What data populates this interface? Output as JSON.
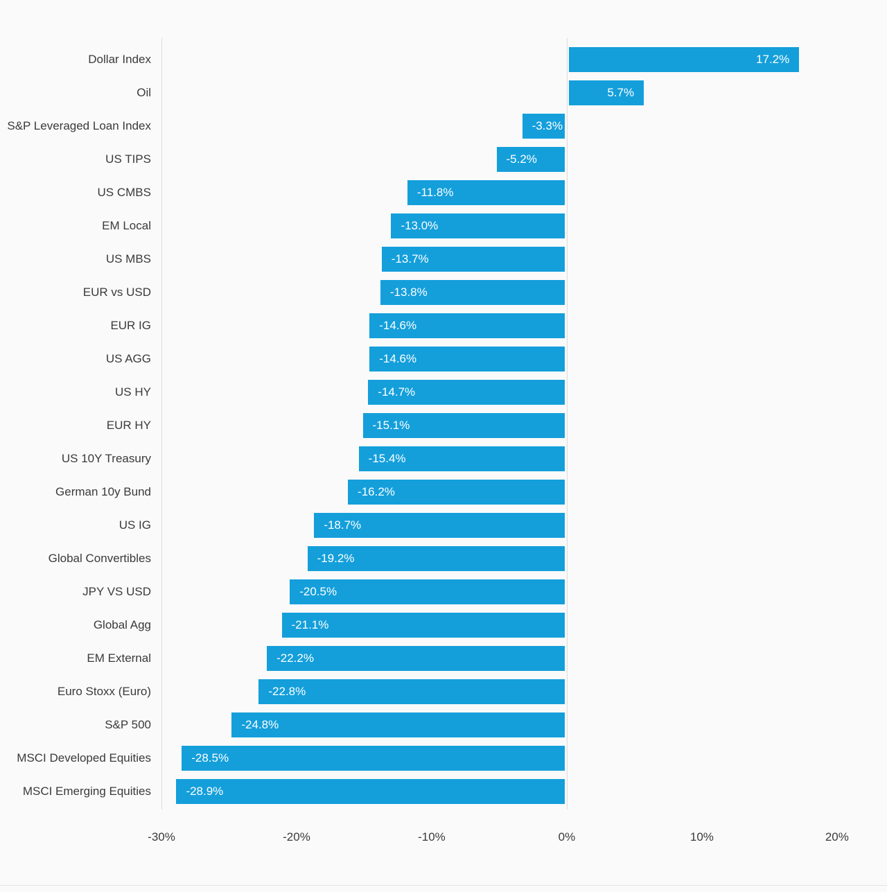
{
  "chart_data": {
    "type": "bar",
    "orientation": "horizontal",
    "title": "",
    "categories": [
      "Dollar Index",
      "Oil",
      "S&P Leveraged Loan Index",
      "US TIPS",
      "US CMBS",
      "EM Local",
      "US MBS",
      "EUR vs USD",
      "EUR IG",
      "US AGG",
      "US HY",
      "EUR HY",
      "US 10Y Treasury",
      "German 10y Bund",
      "US IG",
      "Global Convertibles",
      "JPY VS USD",
      "Global Agg",
      "EM External",
      "Euro Stoxx (Euro)",
      "S&P 500",
      "MSCI Developed Equities",
      "MSCI Emerging Equities"
    ],
    "values": [
      17.2,
      5.7,
      -3.3,
      -5.2,
      -11.8,
      -13.0,
      -13.7,
      -13.8,
      -14.6,
      -14.6,
      -14.7,
      -15.1,
      -15.4,
      -16.2,
      -18.7,
      -19.2,
      -20.5,
      -21.1,
      -22.2,
      -22.8,
      -24.8,
      -28.5,
      -28.9
    ],
    "value_labels": [
      "17.2%",
      "5.7%",
      "-3.3%",
      "-5.2%",
      "-11.8%",
      "-13.0%",
      "-13.7%",
      "-13.8%",
      "-14.6%",
      "-14.6%",
      "-14.7%",
      "-15.1%",
      "-15.4%",
      "-16.2%",
      "-18.7%",
      "-19.2%",
      "-20.5%",
      "-21.1%",
      "-22.2%",
      "-22.8%",
      "-24.8%",
      "-28.5%",
      "-28.9%"
    ],
    "xlim": [
      -30,
      23.7
    ],
    "x_ticks": [
      {
        "value": -30,
        "label": "-30%"
      },
      {
        "value": -20,
        "label": "-20%"
      },
      {
        "value": -10,
        "label": "-10%"
      },
      {
        "value": 0,
        "label": "0%"
      },
      {
        "value": 10,
        "label": "10%"
      },
      {
        "value": 20,
        "label": "20%"
      }
    ],
    "gridlines": [
      -30,
      0
    ],
    "bar_color": "#149FDB",
    "gridline_color": "#dcdcdc",
    "legend": null,
    "grid": "vertical-lines-only"
  }
}
